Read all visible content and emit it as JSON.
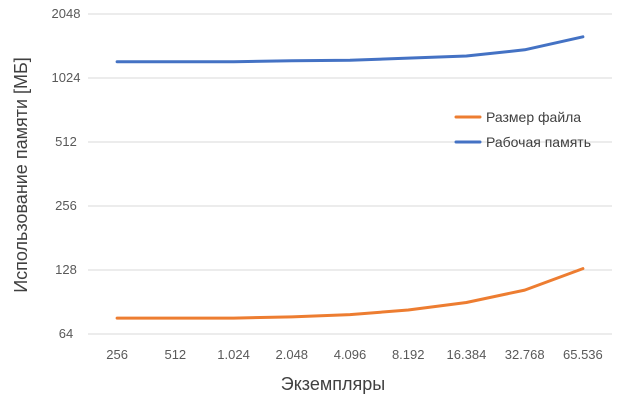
{
  "chart_data": {
    "type": "line",
    "title": "",
    "xlabel": "Экземпляры",
    "ylabel": "Использование памяти [МБ]",
    "y_scale": "log2",
    "ylim": [
      64,
      2048
    ],
    "yticks": [
      "64",
      "128",
      "256",
      "512",
      "1024",
      "2048"
    ],
    "categories": [
      "256",
      "512",
      "1.024",
      "2.048",
      "4.096",
      "8.192",
      "16.384",
      "32.768",
      "65.536"
    ],
    "grid": true,
    "legend_position": "right",
    "series": [
      {
        "name": "Размер файла",
        "color": "#ED7D31",
        "values": [
          76,
          76,
          76,
          77,
          79,
          83,
          90,
          103,
          130
        ]
      },
      {
        "name": "Рабочая память",
        "color": "#4472C4",
        "values": [
          1220,
          1220,
          1220,
          1235,
          1240,
          1270,
          1300,
          1390,
          1600
        ]
      }
    ]
  }
}
